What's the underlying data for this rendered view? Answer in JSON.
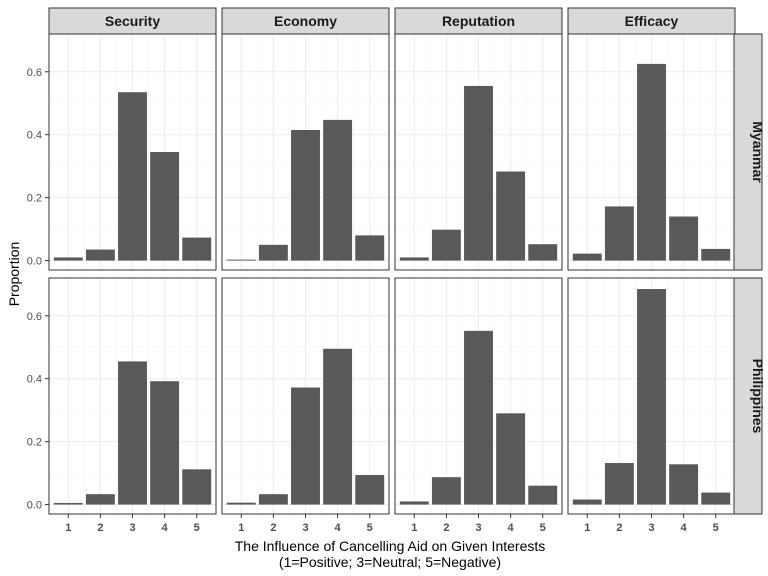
{
  "chart_data": {
    "type": "bar",
    "xlabel_line1": "The Influence of Cancelling Aid on Given Interests",
    "xlabel_line2": "(1=Positive; 3=Neutral; 5=Negative)",
    "ylabel": "Proportion",
    "ylim": [
      -0.03,
      0.72
    ],
    "yticks": [
      0.0,
      0.2,
      0.4,
      0.6
    ],
    "ytick_labels": [
      "0.0",
      "0.2",
      "0.4",
      "0.6"
    ],
    "categories": [
      "1",
      "2",
      "3",
      "4",
      "5"
    ],
    "columns": [
      "Security",
      "Economy",
      "Reputation",
      "Efficacy"
    ],
    "rows": [
      "Myanmar",
      "Philippines"
    ],
    "grid": true,
    "panels": [
      {
        "row": "Myanmar",
        "column": "Security",
        "values": [
          0.01,
          0.035,
          0.535,
          0.345,
          0.073
        ]
      },
      {
        "row": "Myanmar",
        "column": "Economy",
        "values": [
          0.003,
          0.05,
          0.415,
          0.447,
          0.08
        ]
      },
      {
        "row": "Myanmar",
        "column": "Reputation",
        "values": [
          0.01,
          0.098,
          0.555,
          0.283,
          0.052
        ]
      },
      {
        "row": "Myanmar",
        "column": "Efficacy",
        "values": [
          0.022,
          0.172,
          0.625,
          0.14,
          0.037
        ]
      },
      {
        "row": "Philippines",
        "column": "Security",
        "values": [
          0.005,
          0.033,
          0.455,
          0.392,
          0.112
        ]
      },
      {
        "row": "Philippines",
        "column": "Economy",
        "values": [
          0.006,
          0.033,
          0.372,
          0.495,
          0.094
        ]
      },
      {
        "row": "Philippines",
        "column": "Reputation",
        "values": [
          0.01,
          0.087,
          0.552,
          0.29,
          0.06
        ]
      },
      {
        "row": "Philippines",
        "column": "Efficacy",
        "values": [
          0.016,
          0.132,
          0.685,
          0.128,
          0.038
        ]
      }
    ]
  }
}
